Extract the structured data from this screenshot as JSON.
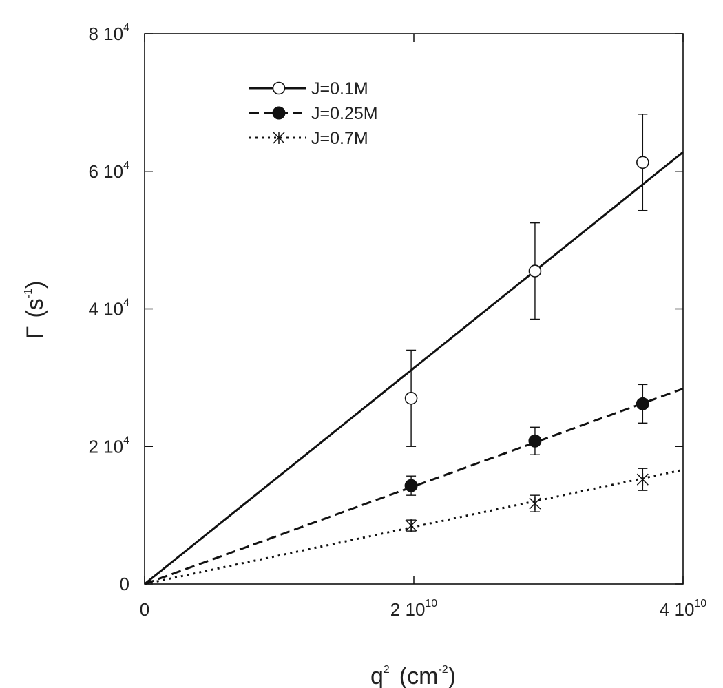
{
  "chart_data": {
    "type": "scatter",
    "xlabel": {
      "base": "q",
      "exp": "2",
      "unit_base": "(cm",
      "unit_exp": "-2",
      "unit_close": ")"
    },
    "ylabel": {
      "base": "Γ",
      "unit_base": "(s",
      "unit_exp": "-1",
      "unit_close": ")"
    },
    "xlim": [
      0,
      40000000000
    ],
    "ylim": [
      0,
      80000
    ],
    "xticks": [
      {
        "value": 0,
        "mant": "0",
        "exp": ""
      },
      {
        "value": 20000000000,
        "mant": "2 10",
        "exp": "10"
      },
      {
        "value": 40000000000,
        "mant": "4 10",
        "exp": "10"
      }
    ],
    "yticks": [
      {
        "value": 0,
        "mant": "0",
        "exp": ""
      },
      {
        "value": 20000,
        "mant": "2 10",
        "exp": "4"
      },
      {
        "value": 40000,
        "mant": "4 10",
        "exp": "4"
      },
      {
        "value": 60000,
        "mant": "6 10",
        "exp": "4"
      },
      {
        "value": 80000,
        "mant": "8 10",
        "exp": "4"
      }
    ],
    "grid": false,
    "legend_position": "top-left",
    "series": [
      {
        "name": "J=0.1M",
        "marker": "open-circle",
        "line": "solid",
        "x": [
          19800000000,
          29000000000,
          37000000000
        ],
        "y": [
          27000,
          45500,
          61300
        ],
        "err": [
          7000,
          7000,
          7000
        ],
        "fit_slope": 1.57e-06
      },
      {
        "name": "J=0.25M",
        "marker": "filled-circle",
        "line": "dashed",
        "x": [
          19800000000,
          29000000000,
          37000000000
        ],
        "y": [
          14300,
          20800,
          26200
        ],
        "err": [
          1400,
          2000,
          2800
        ],
        "fit_slope": 7.1e-07
      },
      {
        "name": "J=0.7M",
        "marker": "asterisk",
        "line": "dotted",
        "x": [
          19800000000,
          29000000000,
          37000000000
        ],
        "y": [
          8500,
          11700,
          15200
        ],
        "err": [
          800,
          1200,
          1600
        ],
        "fit_slope": 4.15e-07
      }
    ]
  }
}
